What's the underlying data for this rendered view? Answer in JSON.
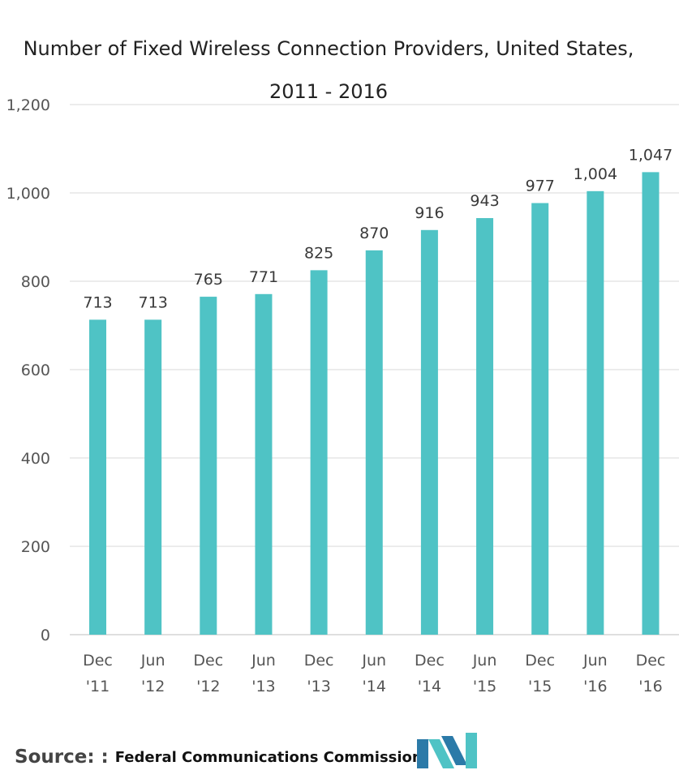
{
  "chart_data": {
    "type": "bar",
    "title_line1": "Number of Fixed Wireless Connection Providers, United States,",
    "title_line2": "2011 - 2016",
    "categories": [
      [
        "Dec",
        "'11"
      ],
      [
        "Jun",
        "'12"
      ],
      [
        "Dec",
        "'12"
      ],
      [
        "Jun",
        "'13"
      ],
      [
        "Dec",
        "'13"
      ],
      [
        "Jun",
        "'14"
      ],
      [
        "Dec",
        "'14"
      ],
      [
        "Jun",
        "'15"
      ],
      [
        "Dec",
        "'15"
      ],
      [
        "Jun",
        "'16"
      ],
      [
        "Dec",
        "'16"
      ]
    ],
    "values": [
      713,
      713,
      765,
      771,
      825,
      870,
      916,
      943,
      977,
      1004,
      1047
    ],
    "value_labels": [
      "713",
      "713",
      "765",
      "771",
      "825",
      "870",
      "916",
      "943",
      "977",
      "1,004",
      "1,047"
    ],
    "ylim": [
      0,
      1200
    ],
    "yticks": [
      0,
      200,
      400,
      600,
      800,
      1000,
      1200
    ],
    "ytick_labels": [
      "0",
      "200",
      "400",
      "600",
      "800",
      "1,000",
      "1,200"
    ],
    "grid": true,
    "bar_color": "#4fc3c5"
  },
  "source": {
    "label": "Source: :",
    "text": "Federal Communications Commission"
  },
  "logo": {
    "icon": "mordor-intelligence-logo-icon",
    "color_dark": "#2b7aa8",
    "color_light": "#4fc3c5"
  }
}
